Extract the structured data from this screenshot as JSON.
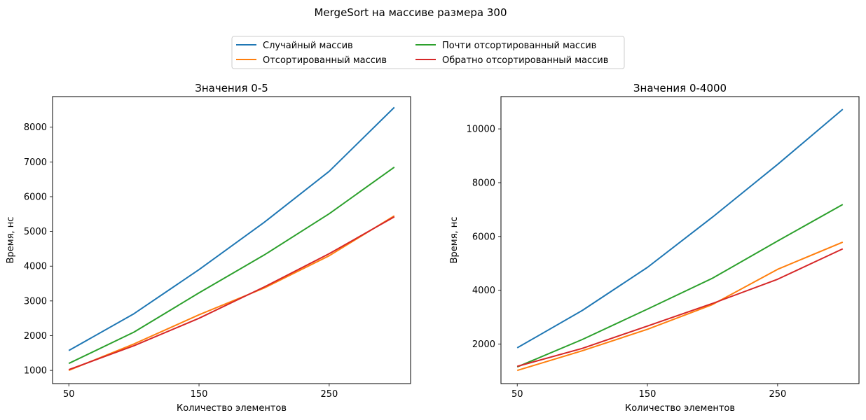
{
  "figure": {
    "suptitle": "MergeSort на массиве размера 300",
    "legend": [
      {
        "name": "Случайный массив",
        "color": "#1f77b4"
      },
      {
        "name": "Отсортированный массив",
        "color": "#ff7f0e"
      },
      {
        "name": "Почти отсортированный массив",
        "color": "#2ca02c"
      },
      {
        "name": "Обратно отсортированный массив",
        "color": "#d62728"
      }
    ]
  },
  "chart_data": [
    {
      "type": "line",
      "title": "Значения 0-5",
      "xlabel": "Количество элементов",
      "ylabel": "Время, нс",
      "x": [
        50,
        100,
        150,
        200,
        250,
        300
      ],
      "xticks": [
        50,
        150,
        250
      ],
      "yticks": [
        1000,
        2000,
        3000,
        4000,
        5000,
        6000,
        7000,
        8000
      ],
      "xlim": [
        37.5,
        312.5
      ],
      "ylim": [
        620,
        8880
      ],
      "grid": false,
      "series": [
        {
          "name": "Случайный массив",
          "color": "#1f77b4",
          "values": [
            1570,
            2630,
            3900,
            5260,
            6730,
            8570
          ]
        },
        {
          "name": "Отсортированный массив",
          "color": "#ff7f0e",
          "values": [
            1000,
            1760,
            2600,
            3370,
            4300,
            5450
          ]
        },
        {
          "name": "Почти отсортированный массив",
          "color": "#2ca02c",
          "values": [
            1200,
            2100,
            3230,
            4320,
            5510,
            6850
          ]
        },
        {
          "name": "Обратно отсортированный массив",
          "color": "#d62728",
          "values": [
            1020,
            1710,
            2500,
            3400,
            4360,
            5420
          ]
        }
      ]
    },
    {
      "type": "line",
      "title": "Значения 0-4000",
      "xlabel": "Количество элементов",
      "ylabel": "Время, нс",
      "x": [
        50,
        100,
        150,
        200,
        250,
        300
      ],
      "xticks": [
        50,
        150,
        250
      ],
      "yticks": [
        2000,
        4000,
        6000,
        8000,
        10000
      ],
      "xlim": [
        37.5,
        312.5
      ],
      "ylim": [
        530,
        11200
      ],
      "grid": false,
      "series": [
        {
          "name": "Случайный массив",
          "color": "#1f77b4",
          "values": [
            1860,
            3250,
            4850,
            6720,
            8680,
            10730
          ]
        },
        {
          "name": "Отсортированный массив",
          "color": "#ff7f0e",
          "values": [
            1020,
            1750,
            2550,
            3470,
            4780,
            5790
          ]
        },
        {
          "name": "Почти отсортированный массив",
          "color": "#2ca02c",
          "values": [
            1150,
            2170,
            3300,
            4450,
            5830,
            7190
          ]
        },
        {
          "name": "Обратно отсортированный массив",
          "color": "#d62728",
          "values": [
            1170,
            1840,
            2670,
            3510,
            4410,
            5540
          ]
        }
      ]
    }
  ]
}
